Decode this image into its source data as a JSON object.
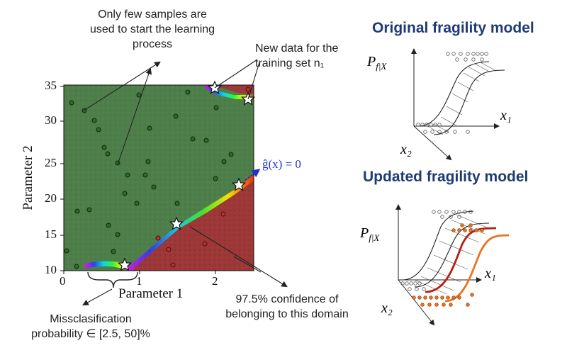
{
  "annotations": {
    "few_samples": [
      "Only few samples are",
      "used to start the learning",
      "process"
    ],
    "new_data": [
      "New data for the",
      "training set n₁"
    ],
    "boundary": "ĝ(x) = 0",
    "misclass": [
      "Missclasification",
      "probability ∈ [2.5, 50]%"
    ],
    "confidence": [
      "97.5% confidence of",
      "belonging to this domain"
    ]
  },
  "plot": {
    "xlabel": "Parameter 1",
    "ylabel": "Parameter 2",
    "x_ticks": [
      "0",
      "1",
      "2"
    ],
    "y_ticks": [
      "10",
      "15",
      "20",
      "25",
      "30",
      "35"
    ],
    "xlim": [
      0,
      2.5
    ],
    "ylim": [
      10,
      36
    ],
    "colors": {
      "safe_region": "#4e7f4a",
      "fail_region": "#9c3838",
      "sample_safe": "#2f6a2a",
      "sample_fail": "#c03030"
    }
  },
  "fragility": {
    "original_title": "Original fragility model",
    "updated_title": "Updated fragility model",
    "y_label_main": "P",
    "y_label_sub": "f|X",
    "x1_label": "x₁",
    "x2_label": "x₂",
    "colors": {
      "title": "#1f3b73",
      "curve_red": "#b31f10",
      "curve_orange": "#e8731f"
    }
  }
}
